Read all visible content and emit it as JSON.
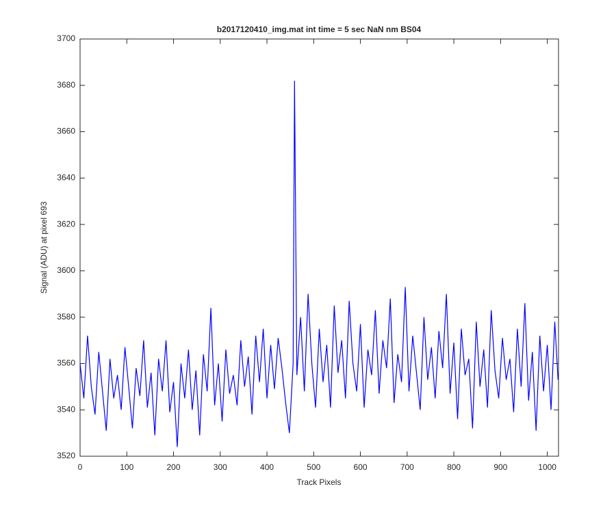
{
  "chart_data": {
    "type": "line",
    "title": "b2017120410_img.mat int time = 5 sec  NaN nm BS04",
    "x_label": "Track Pixels",
    "y_label": "Signal (ADU) at pixel 693",
    "xlim": [
      0,
      1024
    ],
    "ylim": [
      3520,
      3700
    ],
    "xticks": [
      0,
      100,
      200,
      300,
      400,
      500,
      600,
      700,
      800,
      900,
      1000
    ],
    "yticks": [
      3520,
      3540,
      3560,
      3580,
      3600,
      3620,
      3640,
      3660,
      3680,
      3700
    ],
    "grid": false,
    "series": [
      {
        "name": "signal",
        "color": "#0000ff",
        "x": [
          0,
          8,
          16,
          24,
          32,
          40,
          48,
          56,
          64,
          72,
          80,
          88,
          96,
          104,
          112,
          120,
          128,
          136,
          144,
          152,
          160,
          168,
          176,
          184,
          192,
          200,
          208,
          216,
          224,
          232,
          240,
          248,
          256,
          264,
          272,
          280,
          288,
          296,
          304,
          312,
          320,
          328,
          336,
          344,
          352,
          360,
          368,
          376,
          384,
          392,
          400,
          408,
          416,
          424,
          432,
          440,
          448,
          456,
          459,
          464,
          472,
          480,
          488,
          496,
          504,
          512,
          520,
          528,
          536,
          544,
          552,
          560,
          568,
          576,
          584,
          592,
          600,
          608,
          616,
          624,
          632,
          640,
          648,
          656,
          664,
          672,
          680,
          688,
          696,
          704,
          712,
          720,
          728,
          736,
          744,
          752,
          760,
          768,
          776,
          784,
          792,
          800,
          808,
          816,
          824,
          832,
          840,
          848,
          856,
          864,
          872,
          880,
          888,
          896,
          904,
          912,
          920,
          928,
          936,
          944,
          952,
          960,
          968,
          976,
          984,
          992,
          1000,
          1008,
          1016,
          1023
        ],
        "values": [
          3560,
          3545,
          3572,
          3550,
          3538,
          3565,
          3548,
          3531,
          3562,
          3545,
          3555,
          3540,
          3567,
          3550,
          3532,
          3558,
          3546,
          3570,
          3541,
          3556,
          3529,
          3562,
          3548,
          3570,
          3539,
          3552,
          3524,
          3560,
          3545,
          3566,
          3540,
          3557,
          3529,
          3564,
          3548,
          3584,
          3542,
          3560,
          3535,
          3566,
          3547,
          3555,
          3542,
          3570,
          3550,
          3563,
          3538,
          3572,
          3552,
          3575,
          3545,
          3568,
          3549,
          3571,
          3558,
          3543,
          3530,
          3560,
          3682,
          3555,
          3580,
          3548,
          3590,
          3560,
          3541,
          3575,
          3552,
          3568,
          3541,
          3585,
          3556,
          3570,
          3545,
          3587,
          3560,
          3548,
          3577,
          3541,
          3566,
          3555,
          3583,
          3547,
          3570,
          3558,
          3588,
          3543,
          3564,
          3552,
          3593,
          3548,
          3572,
          3556,
          3540,
          3580,
          3553,
          3567,
          3545,
          3574,
          3558,
          3590,
          3547,
          3569,
          3536,
          3575,
          3555,
          3562,
          3532,
          3578,
          3550,
          3566,
          3541,
          3583,
          3557,
          3545,
          3571,
          3553,
          3562,
          3539,
          3575,
          3550,
          3586,
          3544,
          3565,
          3531,
          3572,
          3548,
          3568,
          3540,
          3578,
          3553
        ]
      }
    ]
  }
}
